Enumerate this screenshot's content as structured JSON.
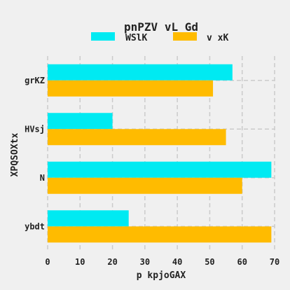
{
  "chart_data": {
    "type": "bar",
    "orientation": "horizontal",
    "title": "pnPZV vL Gd",
    "xlabel": "p kpjoGAX",
    "ylabel": "XPQSOXtx",
    "categories": [
      "grKZ",
      "HVsj",
      "N",
      "ybdt"
    ],
    "series": [
      {
        "name": "WSlK",
        "color": "#00eaf2",
        "values": [
          57,
          20,
          69,
          25
        ]
      },
      {
        "name": "v xK",
        "color": "#ffbb00",
        "values": [
          51,
          55,
          60,
          69
        ]
      }
    ],
    "xlim": [
      0,
      70
    ],
    "xticks": [
      0,
      10,
      20,
      30,
      40,
      50,
      60,
      70
    ],
    "grid": true,
    "grid_style": "dashed",
    "legend_position": "top-center"
  }
}
